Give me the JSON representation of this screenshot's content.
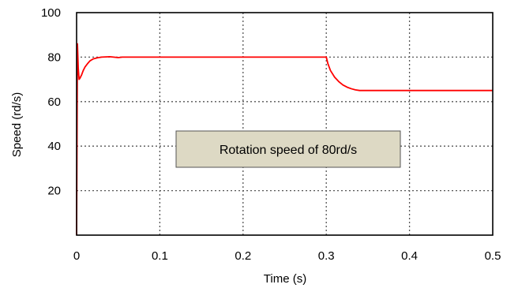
{
  "chart_data": {
    "type": "line",
    "title": "",
    "xlabel": "Time (s)",
    "ylabel": "Speed (rd/s)",
    "xlim": [
      0,
      0.5
    ],
    "ylim": [
      0,
      100
    ],
    "x_ticks": [
      0,
      0.1,
      0.2,
      0.3,
      0.4,
      0.5
    ],
    "x_tick_labels": [
      "0",
      "0.1",
      "0.2",
      "0.3",
      "0.4",
      "0.5"
    ],
    "y_ticks": [
      20,
      40,
      60,
      80,
      100
    ],
    "y_tick_labels": [
      "20",
      "40",
      "60",
      "80",
      "100"
    ],
    "grid": true,
    "grid_style": "dotted",
    "line_color": "#ff0000",
    "annotation": "Rotation speed of 80rd/s",
    "annotation_bg": "#ddd9c4",
    "series": [
      {
        "values_x": [
          0,
          0.001,
          0.002,
          0.003,
          0.004,
          0.006,
          0.008,
          0.01,
          0.013,
          0.016,
          0.02,
          0.025,
          0.03,
          0.04,
          0.05,
          0.055,
          0.06,
          0.1,
          0.2,
          0.299,
          0.3,
          0.302,
          0.305,
          0.31,
          0.315,
          0.32,
          0.325,
          0.33,
          0.335,
          0.34,
          0.35,
          0.4,
          0.5
        ],
        "values_y": [
          0,
          86,
          75,
          70,
          70.5,
          72,
          74,
          75.5,
          77,
          78.3,
          79.2,
          79.7,
          80,
          80.2,
          79.8,
          80,
          80,
          80,
          80,
          80,
          80,
          77,
          74,
          71,
          69,
          67.5,
          66.5,
          65.8,
          65.3,
          65,
          65,
          65,
          65
        ]
      }
    ]
  }
}
